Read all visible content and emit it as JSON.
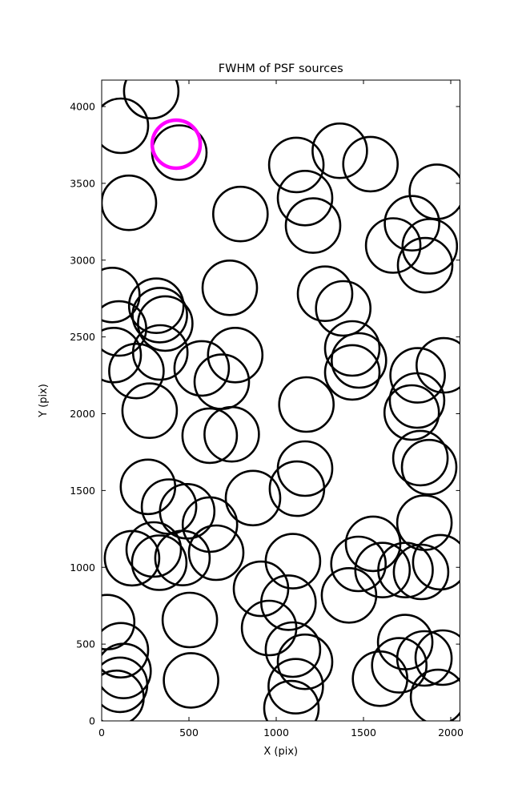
{
  "title": "FWHM of PSF sources",
  "chart_data": {
    "type": "scatter",
    "title": "FWHM of PSF sources",
    "xlabel": "X (pix)",
    "ylabel": "Y (pix)",
    "xlim": [
      0,
      2050
    ],
    "ylim": [
      0,
      4172
    ],
    "x_ticks": [
      0,
      500,
      1000,
      1500,
      2000
    ],
    "y_ticks": [
      0,
      500,
      1000,
      1500,
      2000,
      2500,
      3000,
      3500,
      4000
    ],
    "grid": false,
    "legend": "none",
    "marker": "open-circle",
    "marker_radius_px": 34,
    "marker_stroke_px": 2.6,
    "source_color": "#000000",
    "highlight_color": "#ff00ff",
    "highlight_stroke_px": 4.5,
    "highlight_radius_px": 30,
    "highlighted_source": {
      "x": 427,
      "y": 3755
    },
    "sources": [
      [
        284,
        4100
      ],
      [
        110,
        3875
      ],
      [
        445,
        3700
      ],
      [
        156,
        3373
      ],
      [
        795,
        3300
      ],
      [
        1115,
        3620
      ],
      [
        1364,
        3712
      ],
      [
        1540,
        3625
      ],
      [
        1165,
        3404
      ],
      [
        1211,
        3225
      ],
      [
        1920,
        3445
      ],
      [
        1778,
        3240
      ],
      [
        1670,
        3095
      ],
      [
        1853,
        2967
      ],
      [
        1880,
        3090
      ],
      [
        734,
        2820
      ],
      [
        61,
        2773
      ],
      [
        313,
        2703
      ],
      [
        333,
        2642
      ],
      [
        99,
        2555
      ],
      [
        364,
        2587
      ],
      [
        69,
        2382
      ],
      [
        199,
        2278
      ],
      [
        336,
        2399
      ],
      [
        573,
        2295
      ],
      [
        765,
        2382
      ],
      [
        688,
        2208
      ],
      [
        1280,
        2781
      ],
      [
        1384,
        2686
      ],
      [
        1436,
        2425
      ],
      [
        1474,
        2347
      ],
      [
        1436,
        2269
      ],
      [
        1960,
        2315
      ],
      [
        1810,
        2250
      ],
      [
        1807,
        2086
      ],
      [
        1776,
        2008
      ],
      [
        1173,
        2060
      ],
      [
        275,
        2020
      ],
      [
        619,
        1857
      ],
      [
        745,
        1866
      ],
      [
        265,
        1524
      ],
      [
        386,
        1395
      ],
      [
        490,
        1365
      ],
      [
        620,
        1278
      ],
      [
        867,
        1451
      ],
      [
        1165,
        1643
      ],
      [
        1119,
        1512
      ],
      [
        1826,
        1711
      ],
      [
        1876,
        1652
      ],
      [
        1849,
        1290
      ],
      [
        174,
        1059
      ],
      [
        298,
        1116
      ],
      [
        330,
        1030
      ],
      [
        463,
        1060
      ],
      [
        656,
        1095
      ],
      [
        1555,
        1153
      ],
      [
        1471,
        1022
      ],
      [
        1609,
        982
      ],
      [
        1096,
        1040
      ],
      [
        1741,
        982
      ],
      [
        1830,
        970
      ],
      [
        1940,
        1033
      ],
      [
        913,
        860
      ],
      [
        959,
        605
      ],
      [
        1070,
        770
      ],
      [
        31,
        643
      ],
      [
        110,
        460
      ],
      [
        125,
        325
      ],
      [
        105,
        235
      ],
      [
        85,
        150
      ],
      [
        505,
        657
      ],
      [
        512,
        264
      ],
      [
        1096,
        464
      ],
      [
        1165,
        385
      ],
      [
        1112,
        226
      ],
      [
        1417,
        817
      ],
      [
        1739,
        513
      ],
      [
        1705,
        362
      ],
      [
        1595,
        275
      ],
      [
        1849,
        407
      ],
      [
        1954,
        412
      ],
      [
        1927,
        156
      ],
      [
        1087,
        83
      ]
    ]
  }
}
